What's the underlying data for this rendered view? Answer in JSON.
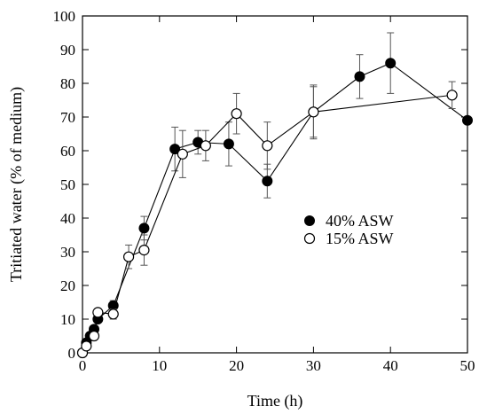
{
  "chart_data": {
    "type": "scatter",
    "xlabel": "Time (h)",
    "ylabel": "Tritiated water (% of medium)",
    "xlim": [
      0,
      50
    ],
    "ylim": [
      0,
      100
    ],
    "xticks": [
      0,
      10,
      20,
      30,
      40,
      50
    ],
    "yticks": [
      0,
      10,
      20,
      30,
      40,
      50,
      60,
      70,
      80,
      90,
      100
    ],
    "grid": false,
    "legend_position": "center-right",
    "series": [
      {
        "name": "40% ASW",
        "marker": "filled-circle",
        "color": "#000000",
        "points": [
          {
            "x": 0,
            "y": 0,
            "err": 0
          },
          {
            "x": 0.5,
            "y": 3,
            "err": 0
          },
          {
            "x": 1,
            "y": 5,
            "err": 0
          },
          {
            "x": 1.5,
            "y": 7,
            "err": 0
          },
          {
            "x": 2,
            "y": 10,
            "err": 0
          },
          {
            "x": 4,
            "y": 14,
            "err": 1.5
          },
          {
            "x": 8,
            "y": 37,
            "err": 3.5
          },
          {
            "x": 12,
            "y": 60.5,
            "err": 6.5
          },
          {
            "x": 15,
            "y": 62.5,
            "err": 3.5
          },
          {
            "x": 19,
            "y": 62,
            "err": 6.5
          },
          {
            "x": 24,
            "y": 51,
            "err": 5
          },
          {
            "x": 30,
            "y": 71.5,
            "err": 8
          },
          {
            "x": 36,
            "y": 82,
            "err": 6.5
          },
          {
            "x": 40,
            "y": 86,
            "err": 9
          },
          {
            "x": 50,
            "y": 69,
            "err": 0
          }
        ]
      },
      {
        "name": "15% ASW",
        "marker": "open-circle",
        "color": "#000000",
        "points": [
          {
            "x": 0,
            "y": 0,
            "err": 0
          },
          {
            "x": 0.5,
            "y": 2,
            "err": 0
          },
          {
            "x": 1.5,
            "y": 5,
            "err": 0
          },
          {
            "x": 2,
            "y": 12,
            "err": 0
          },
          {
            "x": 4,
            "y": 11.5,
            "err": 1.5
          },
          {
            "x": 6,
            "y": 28.5,
            "err": 3.5
          },
          {
            "x": 8,
            "y": 30.5,
            "err": 4.5
          },
          {
            "x": 13,
            "y": 59,
            "err": 7
          },
          {
            "x": 16,
            "y": 61.5,
            "err": 4.5
          },
          {
            "x": 20,
            "y": 71,
            "err": 6
          },
          {
            "x": 24,
            "y": 61.5,
            "err": 7
          },
          {
            "x": 30,
            "y": 71.5,
            "err": 7.5
          },
          {
            "x": 48,
            "y": 76.5,
            "err": 4
          }
        ]
      }
    ]
  }
}
